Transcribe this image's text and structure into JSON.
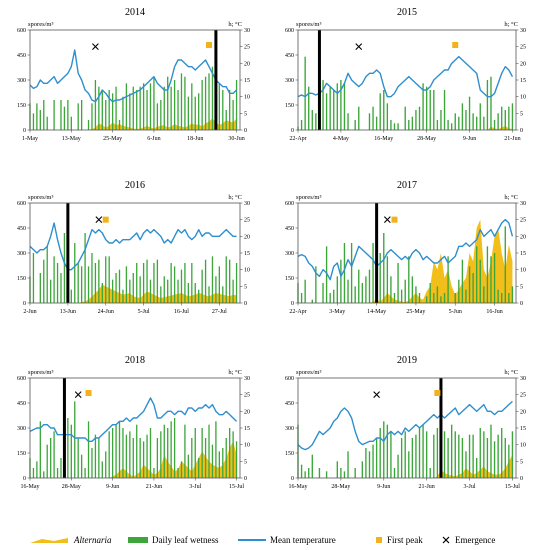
{
  "units": {
    "left": "spores/m³",
    "right": "h; °C"
  },
  "legend": {
    "alternaria": "Alternaria",
    "leaf_wetness": "Daily leaf wetness",
    "temperature": "Mean temperature",
    "first_peak": "First peak",
    "emergence": "Emergence"
  },
  "colors": {
    "alternaria": "#F2BE1A",
    "leaf_wetness": "#3CA63A",
    "temperature": "#2E8FCF",
    "first_peak": "#F2B21A",
    "emergence": "#000000"
  },
  "chart_data": [
    {
      "type": "combo",
      "title": "2014",
      "y_left": [
        0,
        600
      ],
      "y_left_ticks": [
        0,
        150,
        300,
        450,
        600
      ],
      "y_right": [
        0,
        30
      ],
      "y_right_ticks": [
        0,
        5,
        10,
        15,
        20,
        25,
        30
      ],
      "x_range": [
        0,
        61
      ],
      "x_ticks": [
        {
          "d": 0,
          "label": "1-May"
        },
        {
          "d": 12,
          "label": "13-May"
        },
        {
          "d": 24,
          "label": "25-May"
        },
        {
          "d": 36,
          "label": "6-Jun"
        },
        {
          "d": 48,
          "label": "18-Jun"
        },
        {
          "d": 60,
          "label": "30-Jun"
        }
      ],
      "emergence_day": 19,
      "emergence_temp": 25,
      "first_peak_day": 52,
      "first_peak_temp": 25.5,
      "marker_day": 54,
      "temperature": [
        13.5,
        12.5,
        13,
        15,
        14,
        14,
        15,
        16,
        14,
        15,
        16,
        17,
        19,
        24,
        17,
        15,
        12,
        11,
        9,
        8.5,
        10,
        12,
        11,
        9.5,
        8.5,
        9,
        9,
        9.5,
        10,
        10.5,
        11,
        11.5,
        12,
        13,
        14,
        15,
        16,
        14,
        13,
        12,
        12,
        15,
        19,
        21,
        21,
        20,
        19,
        19,
        18,
        19,
        20,
        21,
        19,
        17,
        15,
        14,
        13,
        13,
        11,
        11,
        12
      ],
      "wetness": [
        8,
        5,
        8,
        6,
        9,
        4,
        0,
        9,
        0,
        9,
        7,
        9,
        4,
        0,
        8,
        9,
        0,
        3,
        8,
        15,
        13,
        12,
        9,
        12,
        11,
        13,
        3,
        10,
        14,
        11,
        13,
        12,
        13,
        14,
        12,
        14,
        16,
        8,
        9,
        13,
        16,
        13,
        15,
        12,
        17,
        16,
        10,
        14,
        10,
        11,
        15,
        16,
        17,
        19,
        11,
        14,
        12,
        6,
        12,
        9,
        15
      ],
      "alternaria": [
        0,
        0,
        0,
        0,
        0,
        0,
        0,
        0,
        0,
        0,
        0,
        0,
        0,
        0,
        0,
        0,
        0,
        0,
        5,
        15,
        40,
        30,
        15,
        25,
        45,
        30,
        35,
        25,
        20,
        15,
        10,
        5,
        10,
        15,
        25,
        15,
        10,
        20,
        25,
        30,
        15,
        20,
        35,
        25,
        20,
        15,
        25,
        40,
        30,
        35,
        20,
        40,
        50,
        70,
        45,
        30,
        40,
        60,
        50,
        45,
        70
      ]
    },
    {
      "type": "combo",
      "title": "2015",
      "y_left": [
        0,
        600
      ],
      "y_left_ticks": [
        0,
        150,
        300,
        450,
        600
      ],
      "y_right": [
        0,
        30
      ],
      "y_right_ticks": [
        0,
        5,
        10,
        15,
        20,
        25,
        30
      ],
      "x_range": [
        0,
        61
      ],
      "x_ticks": [
        {
          "d": 0,
          "label": "22-Apr"
        },
        {
          "d": 12,
          "label": "4-May"
        },
        {
          "d": 24,
          "label": "16-May"
        },
        {
          "d": 36,
          "label": "28-May"
        },
        {
          "d": 48,
          "label": "9-Jun"
        },
        {
          "d": 60,
          "label": "21-Jun"
        }
      ],
      "emergence_day": 17,
      "emergence_temp": 25,
      "first_peak_day": 44,
      "first_peak_temp": 25.5,
      "marker_day": 6,
      "temperature": [
        10,
        10.5,
        10,
        11,
        11,
        10.5,
        11,
        12,
        14,
        13,
        12,
        11,
        12,
        14,
        17,
        15,
        14,
        13,
        14,
        16,
        17,
        17,
        18,
        17,
        13,
        10,
        10,
        11,
        13,
        14,
        15,
        16,
        15,
        14,
        13,
        12,
        12,
        13,
        15,
        16,
        17,
        18,
        18,
        20,
        21,
        22,
        21,
        20,
        19,
        18,
        17,
        12,
        11,
        10,
        10,
        11,
        14,
        17,
        19,
        18,
        16
      ],
      "wetness": [
        1,
        3,
        22,
        13,
        6,
        5,
        3,
        15,
        11,
        13,
        12,
        14,
        15,
        14,
        5,
        0,
        3,
        7,
        0,
        0,
        5,
        7,
        4,
        11,
        12,
        8,
        3,
        2,
        2,
        0,
        7,
        3,
        4,
        6,
        7,
        14,
        13,
        12,
        12,
        3,
        6,
        12,
        3,
        2,
        5,
        4,
        8,
        6,
        10,
        5,
        4,
        8,
        4,
        15,
        16,
        3,
        5,
        7,
        6,
        7,
        8
      ],
      "alternaria": [
        0,
        0,
        0,
        0,
        0,
        0,
        0,
        0,
        0,
        0,
        0,
        0,
        0,
        0,
        0,
        0,
        0,
        0,
        0,
        0,
        0,
        0,
        0,
        0,
        0,
        0,
        0,
        0,
        0,
        0,
        0,
        0,
        0,
        0,
        0,
        0,
        0,
        0,
        0,
        0,
        0,
        0,
        0,
        0,
        0,
        0,
        0,
        0,
        0,
        0,
        0,
        0,
        0,
        0,
        20,
        10,
        5,
        15,
        25,
        10,
        5
      ]
    },
    {
      "type": "combo",
      "title": "2016",
      "y_left": [
        0,
        600
      ],
      "y_left_ticks": [
        0,
        150,
        300,
        450,
        600
      ],
      "y_right": [
        0,
        30
      ],
      "y_right_ticks": [
        0,
        5,
        10,
        15,
        20,
        25,
        30
      ],
      "x_range": [
        0,
        61
      ],
      "x_ticks": [
        {
          "d": 0,
          "label": "2-Jun"
        },
        {
          "d": 11,
          "label": "13-Jun"
        },
        {
          "d": 22,
          "label": "24-Jun"
        },
        {
          "d": 33,
          "label": "5-Jul"
        },
        {
          "d": 44,
          "label": "16-Jul"
        },
        {
          "d": 55,
          "label": "27-Jul"
        }
      ],
      "emergence_day": 20,
      "emergence_temp": 25,
      "first_peak_day": 22,
      "first_peak_temp": 25,
      "marker_day": 11,
      "temperature": [
        17,
        16,
        15,
        16,
        16,
        17,
        20,
        24,
        19,
        15,
        12,
        10,
        10,
        11,
        12,
        14,
        16,
        19,
        22,
        21,
        22,
        21,
        19,
        18,
        18,
        19,
        18,
        19,
        19,
        19,
        20,
        21,
        19,
        21,
        22,
        21,
        22,
        21,
        20,
        18,
        19,
        18,
        20,
        22,
        21,
        22,
        20,
        19,
        20,
        22,
        20,
        21,
        21,
        20,
        20,
        20,
        21,
        22,
        21,
        20,
        20
      ],
      "wetness": [
        8,
        15,
        0,
        9,
        13,
        17,
        7,
        14,
        12,
        9,
        21,
        16,
        4,
        18,
        12,
        11,
        21,
        11,
        15,
        12,
        13,
        6,
        14,
        14,
        7,
        9,
        10,
        4,
        11,
        7,
        9,
        12,
        8,
        12,
        13,
        7,
        12,
        13,
        5,
        8,
        7,
        12,
        11,
        7,
        10,
        12,
        6,
        12,
        6,
        4,
        10,
        13,
        5,
        14,
        8,
        11,
        5,
        14,
        13,
        7,
        12
      ],
      "alternaria": [
        0,
        0,
        0,
        0,
        0,
        0,
        0,
        0,
        0,
        0,
        0,
        0,
        0,
        0,
        0,
        5,
        10,
        20,
        40,
        60,
        80,
        110,
        100,
        90,
        80,
        70,
        60,
        50,
        55,
        60,
        40,
        35,
        30,
        50,
        70,
        60,
        50,
        40,
        30,
        35,
        40,
        45,
        50,
        55,
        60,
        50,
        40,
        45,
        50,
        60,
        55,
        45,
        40,
        50,
        60,
        55,
        50,
        45,
        40,
        50,
        45
      ]
    },
    {
      "type": "combo",
      "title": "2017",
      "y_left": [
        0,
        600
      ],
      "y_left_ticks": [
        0,
        150,
        300,
        450,
        600
      ],
      "y_right": [
        0,
        30
      ],
      "y_right_ticks": [
        0,
        5,
        10,
        15,
        20,
        25,
        30
      ],
      "x_range": [
        0,
        61
      ],
      "x_ticks": [
        {
          "d": 0,
          "label": "22-Apr"
        },
        {
          "d": 11,
          "label": "3-May"
        },
        {
          "d": 22,
          "label": "14-May"
        },
        {
          "d": 33,
          "label": "25-May"
        },
        {
          "d": 44,
          "label": "5-Jun"
        },
        {
          "d": 55,
          "label": "16-Jun"
        }
      ],
      "emergence_day": 25,
      "emergence_temp": 25,
      "first_peak_day": 27,
      "first_peak_temp": 25,
      "marker_day": 22,
      "temperature": [
        14,
        14.5,
        14,
        12,
        11,
        9,
        8,
        10,
        9,
        7,
        11,
        12,
        8,
        10,
        13,
        11,
        14,
        17,
        16,
        15,
        14,
        13,
        11,
        12,
        13,
        15,
        16,
        15,
        14,
        13,
        14,
        13,
        15,
        16,
        15,
        13,
        14,
        13,
        12,
        12,
        13,
        14,
        12,
        13,
        14,
        17,
        17,
        18,
        17,
        18,
        19,
        22,
        20,
        21,
        22,
        20,
        22,
        24,
        25,
        24,
        20
      ],
      "wetness": [
        6,
        3,
        7,
        0,
        1,
        11,
        0,
        6,
        17,
        3,
        4,
        8,
        13,
        18,
        7,
        18,
        5,
        10,
        6,
        8,
        10,
        18,
        14,
        15,
        21,
        14,
        8,
        3,
        12,
        4,
        7,
        14,
        8,
        5,
        3,
        0,
        2,
        6,
        3,
        5,
        2,
        3,
        14,
        0,
        3,
        7,
        13,
        4,
        11,
        9,
        17,
        13,
        5,
        17,
        14,
        15,
        4,
        3,
        23,
        3,
        5
      ],
      "alternaria": [
        0,
        0,
        0,
        0,
        0,
        0,
        0,
        0,
        0,
        0,
        0,
        0,
        0,
        0,
        0,
        0,
        0,
        0,
        0,
        0,
        0,
        10,
        20,
        10,
        30,
        60,
        40,
        20,
        15,
        10,
        5,
        15,
        40,
        60,
        30,
        20,
        70,
        100,
        250,
        200,
        300,
        150,
        200,
        100,
        50,
        80,
        120,
        150,
        300,
        250,
        450,
        500,
        200,
        150,
        250,
        400,
        450,
        300,
        200,
        350,
        250
      ]
    },
    {
      "type": "combo",
      "title": "2018",
      "y_left": [
        0,
        600
      ],
      "y_left_ticks": [
        0,
        150,
        300,
        450,
        600
      ],
      "y_right": [
        0,
        30
      ],
      "y_right_ticks": [
        0,
        5,
        10,
        15,
        20,
        25,
        30
      ],
      "x_range": [
        0,
        61
      ],
      "x_ticks": [
        {
          "d": 0,
          "label": "16-May"
        },
        {
          "d": 12,
          "label": "28-May"
        },
        {
          "d": 24,
          "label": "9-Jun"
        },
        {
          "d": 36,
          "label": "21-Jun"
        },
        {
          "d": 48,
          "label": "3-Jul"
        },
        {
          "d": 60,
          "label": "15-Jul"
        }
      ],
      "emergence_day": 14,
      "emergence_temp": 25,
      "first_peak_day": 17,
      "first_peak_temp": 25.5,
      "marker_day": 10,
      "temperature": [
        14,
        14.5,
        15,
        15,
        16,
        16,
        15,
        15,
        13,
        13,
        13,
        13,
        13,
        12,
        12,
        12,
        12,
        11,
        11,
        12,
        12,
        13,
        14,
        15,
        16,
        16,
        17,
        17,
        18,
        17,
        18,
        18,
        19,
        20,
        22,
        24,
        22,
        18,
        18,
        19,
        20,
        20,
        19,
        20,
        20,
        19,
        21,
        21,
        20,
        21,
        21,
        22,
        21,
        22,
        20,
        19,
        19,
        20,
        19,
        18,
        17
      ],
      "wetness": [
        6,
        3,
        5,
        17,
        2,
        10,
        12,
        14,
        3,
        6,
        15,
        18,
        16,
        23,
        12,
        7,
        3,
        17,
        9,
        13,
        12,
        5,
        8,
        14,
        15,
        16,
        17,
        15,
        13,
        14,
        12,
        16,
        12,
        11,
        13,
        15,
        3,
        12,
        14,
        16,
        15,
        17,
        18,
        3,
        5,
        16,
        7,
        12,
        15,
        6,
        15,
        12,
        16,
        10,
        17,
        8,
        9,
        12,
        15,
        14,
        11
      ],
      "alternaria": [
        0,
        0,
        0,
        0,
        0,
        0,
        0,
        0,
        0,
        0,
        0,
        0,
        0,
        0,
        0,
        0,
        0,
        0,
        0,
        0,
        0,
        0,
        0,
        0,
        10,
        20,
        40,
        60,
        40,
        20,
        10,
        20,
        40,
        80,
        60,
        40,
        20,
        30,
        60,
        140,
        100,
        70,
        40,
        50,
        100,
        80,
        60,
        40,
        80,
        120,
        160,
        130,
        100,
        80,
        70,
        60,
        80,
        120,
        180,
        220,
        140
      ]
    },
    {
      "type": "combo",
      "title": "2019",
      "y_left": [
        0,
        600
      ],
      "y_left_ticks": [
        0,
        150,
        300,
        450,
        600
      ],
      "y_right": [
        0,
        30
      ],
      "y_right_ticks": [
        0,
        5,
        10,
        15,
        20,
        25,
        30
      ],
      "x_range": [
        0,
        61
      ],
      "x_ticks": [
        {
          "d": 0,
          "label": "16-May"
        },
        {
          "d": 12,
          "label": "28-May"
        },
        {
          "d": 24,
          "label": "9-Jun"
        },
        {
          "d": 36,
          "label": "21-Jun"
        },
        {
          "d": 48,
          "label": "3-Jul"
        },
        {
          "d": 60,
          "label": "15-Jul"
        }
      ],
      "emergence_day": 22,
      "emergence_temp": 25,
      "first_peak_day": 39,
      "first_peak_temp": 25.5,
      "marker_day": 40,
      "temperature": [
        10,
        9,
        8.5,
        9,
        10,
        12,
        14,
        13,
        14,
        15,
        17,
        18,
        20,
        21,
        20,
        18,
        14,
        11,
        10,
        10.5,
        11,
        11,
        12,
        12,
        11,
        13,
        14,
        13,
        14,
        13,
        15,
        14,
        15,
        16,
        15,
        16,
        17,
        18,
        19,
        18,
        19,
        18,
        19,
        20,
        21,
        19,
        20,
        21,
        22,
        21,
        20,
        21,
        22,
        20,
        20,
        19,
        20,
        20,
        21,
        22,
        23
      ],
      "wetness": [
        16,
        4,
        2,
        3,
        7,
        0,
        3,
        0,
        2,
        0,
        0,
        5,
        3,
        2,
        8,
        0,
        3,
        0,
        5,
        9,
        8,
        10,
        12,
        15,
        17,
        16,
        14,
        3,
        7,
        12,
        14,
        8,
        12,
        13,
        15,
        16,
        14,
        3,
        13,
        15,
        13,
        14,
        12,
        16,
        14,
        13,
        12,
        8,
        13,
        13,
        6,
        15,
        14,
        12,
        16,
        11,
        13,
        15,
        12,
        10,
        14
      ],
      "alternaria": [
        0,
        0,
        0,
        0,
        0,
        0,
        0,
        0,
        0,
        0,
        0,
        0,
        0,
        0,
        0,
        0,
        0,
        0,
        0,
        0,
        0,
        0,
        0,
        0,
        0,
        0,
        0,
        0,
        0,
        0,
        0,
        0,
        0,
        0,
        0,
        0,
        0,
        0,
        0,
        10,
        50,
        30,
        20,
        15,
        10,
        20,
        30,
        60,
        40,
        20,
        30,
        50,
        70,
        40,
        30,
        20,
        20,
        30,
        60,
        100,
        140
      ]
    }
  ]
}
